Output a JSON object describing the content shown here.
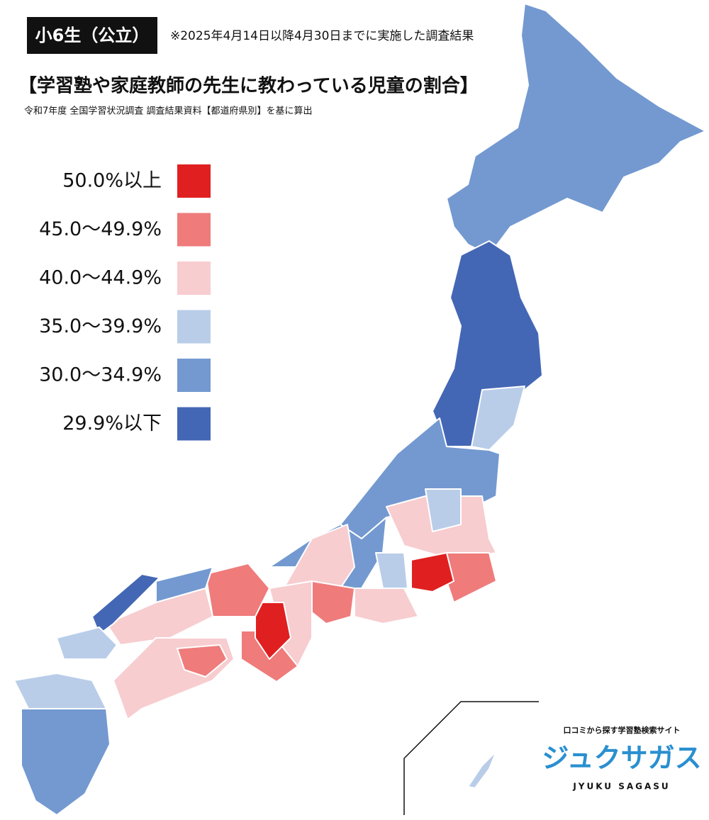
{
  "header": {
    "badge": "小6生（公立）",
    "note": "※2025年4月14日以降4月30日までに実施した調査結果",
    "title": "【学習塾や家庭教師の先生に教わっている児童の割合】",
    "subtitle": "令和7年度 全国学習状況調査 調査結果資料【都道府県別】を基に算出"
  },
  "legend": [
    {
      "label": "50.0%以上",
      "color": "#e02020"
    },
    {
      "label": "45.0～49.9%",
      "color": "#ef7b7b"
    },
    {
      "label": "40.0～44.9%",
      "color": "#f7cdd0"
    },
    {
      "label": "35.0～39.9%",
      "color": "#b9cde9"
    },
    {
      "label": "30.0～34.9%",
      "color": "#7399d0"
    },
    {
      "label": "29.9%以下",
      "color": "#4467b5"
    }
  ],
  "logo": {
    "tagline": "口コミから探す学習塾検索サイト",
    "name": "ジュクサガス",
    "romaji": "JYUKU SAGASU"
  }
}
